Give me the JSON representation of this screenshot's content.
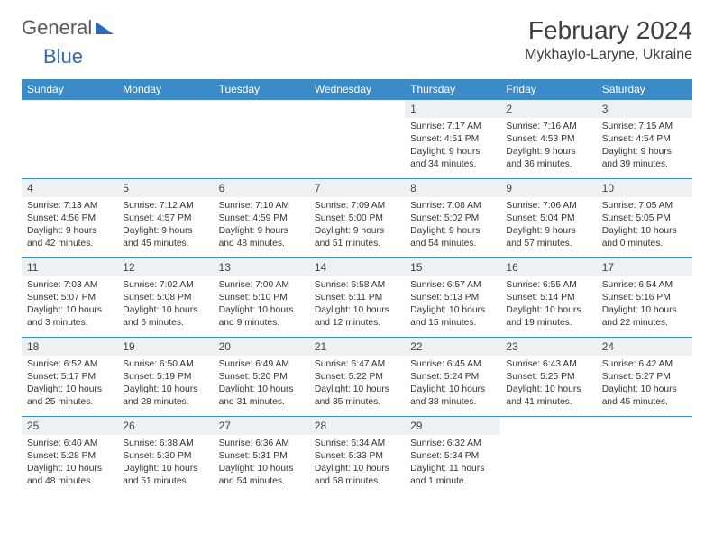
{
  "logo": {
    "text1": "General",
    "text2": "Blue"
  },
  "title": "February 2024",
  "location": "Mykhaylo-Laryne, Ukraine",
  "colors": {
    "header_bg": "#3b8bc9",
    "header_text": "#ffffff",
    "daynum_bg": "#eef0f1",
    "border": "#3b8bc9",
    "logo_blue": "#2d6bb0",
    "logo_gray": "#5a5a5a"
  },
  "weekdays": [
    "Sunday",
    "Monday",
    "Tuesday",
    "Wednesday",
    "Thursday",
    "Friday",
    "Saturday"
  ],
  "weeks": [
    [
      null,
      null,
      null,
      null,
      {
        "n": "1",
        "sr": "7:17 AM",
        "ss": "4:51 PM",
        "dl": "9 hours and 34 minutes."
      },
      {
        "n": "2",
        "sr": "7:16 AM",
        "ss": "4:53 PM",
        "dl": "9 hours and 36 minutes."
      },
      {
        "n": "3",
        "sr": "7:15 AM",
        "ss": "4:54 PM",
        "dl": "9 hours and 39 minutes."
      }
    ],
    [
      {
        "n": "4",
        "sr": "7:13 AM",
        "ss": "4:56 PM",
        "dl": "9 hours and 42 minutes."
      },
      {
        "n": "5",
        "sr": "7:12 AM",
        "ss": "4:57 PM",
        "dl": "9 hours and 45 minutes."
      },
      {
        "n": "6",
        "sr": "7:10 AM",
        "ss": "4:59 PM",
        "dl": "9 hours and 48 minutes."
      },
      {
        "n": "7",
        "sr": "7:09 AM",
        "ss": "5:00 PM",
        "dl": "9 hours and 51 minutes."
      },
      {
        "n": "8",
        "sr": "7:08 AM",
        "ss": "5:02 PM",
        "dl": "9 hours and 54 minutes."
      },
      {
        "n": "9",
        "sr": "7:06 AM",
        "ss": "5:04 PM",
        "dl": "9 hours and 57 minutes."
      },
      {
        "n": "10",
        "sr": "7:05 AM",
        "ss": "5:05 PM",
        "dl": "10 hours and 0 minutes."
      }
    ],
    [
      {
        "n": "11",
        "sr": "7:03 AM",
        "ss": "5:07 PM",
        "dl": "10 hours and 3 minutes."
      },
      {
        "n": "12",
        "sr": "7:02 AM",
        "ss": "5:08 PM",
        "dl": "10 hours and 6 minutes."
      },
      {
        "n": "13",
        "sr": "7:00 AM",
        "ss": "5:10 PM",
        "dl": "10 hours and 9 minutes."
      },
      {
        "n": "14",
        "sr": "6:58 AM",
        "ss": "5:11 PM",
        "dl": "10 hours and 12 minutes."
      },
      {
        "n": "15",
        "sr": "6:57 AM",
        "ss": "5:13 PM",
        "dl": "10 hours and 15 minutes."
      },
      {
        "n": "16",
        "sr": "6:55 AM",
        "ss": "5:14 PM",
        "dl": "10 hours and 19 minutes."
      },
      {
        "n": "17",
        "sr": "6:54 AM",
        "ss": "5:16 PM",
        "dl": "10 hours and 22 minutes."
      }
    ],
    [
      {
        "n": "18",
        "sr": "6:52 AM",
        "ss": "5:17 PM",
        "dl": "10 hours and 25 minutes."
      },
      {
        "n": "19",
        "sr": "6:50 AM",
        "ss": "5:19 PM",
        "dl": "10 hours and 28 minutes."
      },
      {
        "n": "20",
        "sr": "6:49 AM",
        "ss": "5:20 PM",
        "dl": "10 hours and 31 minutes."
      },
      {
        "n": "21",
        "sr": "6:47 AM",
        "ss": "5:22 PM",
        "dl": "10 hours and 35 minutes."
      },
      {
        "n": "22",
        "sr": "6:45 AM",
        "ss": "5:24 PM",
        "dl": "10 hours and 38 minutes."
      },
      {
        "n": "23",
        "sr": "6:43 AM",
        "ss": "5:25 PM",
        "dl": "10 hours and 41 minutes."
      },
      {
        "n": "24",
        "sr": "6:42 AM",
        "ss": "5:27 PM",
        "dl": "10 hours and 45 minutes."
      }
    ],
    [
      {
        "n": "25",
        "sr": "6:40 AM",
        "ss": "5:28 PM",
        "dl": "10 hours and 48 minutes."
      },
      {
        "n": "26",
        "sr": "6:38 AM",
        "ss": "5:30 PM",
        "dl": "10 hours and 51 minutes."
      },
      {
        "n": "27",
        "sr": "6:36 AM",
        "ss": "5:31 PM",
        "dl": "10 hours and 54 minutes."
      },
      {
        "n": "28",
        "sr": "6:34 AM",
        "ss": "5:33 PM",
        "dl": "10 hours and 58 minutes."
      },
      {
        "n": "29",
        "sr": "6:32 AM",
        "ss": "5:34 PM",
        "dl": "11 hours and 1 minute."
      },
      null,
      null
    ]
  ],
  "labels": {
    "sunrise": "Sunrise:",
    "sunset": "Sunset:",
    "daylight": "Daylight:"
  }
}
